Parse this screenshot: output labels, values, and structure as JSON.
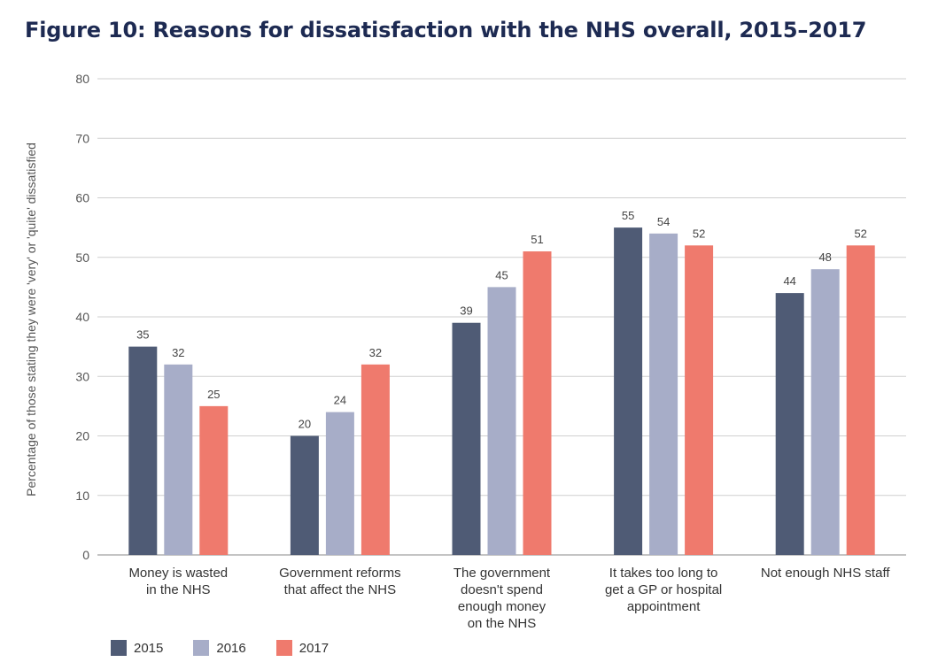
{
  "chart_data": {
    "type": "bar",
    "title": "Figure 10: Reasons for dissatisfaction with the NHS overall, 2015–2017",
    "ylabel": "Percentage of those stating they were 'very' or 'quite' dissatisfied",
    "xlabel": "",
    "ylim": [
      0,
      80
    ],
    "yticks": [
      0,
      10,
      20,
      30,
      40,
      50,
      60,
      70,
      80
    ],
    "grid": true,
    "legend_position": "bottom-left",
    "categories": [
      [
        "Money is wasted",
        "in the NHS"
      ],
      [
        "Government reforms",
        "that affect the NHS"
      ],
      [
        "The government",
        "doesn't spend",
        "enough money",
        "on the NHS"
      ],
      [
        "It takes too long to",
        "get a GP or hospital",
        "appointment"
      ],
      [
        "Not enough NHS staff"
      ]
    ],
    "series": [
      {
        "name": "2015",
        "color": "#4f5b75",
        "values": [
          35,
          20,
          39,
          55,
          44
        ]
      },
      {
        "name": "2016",
        "color": "#a7adc8",
        "values": [
          32,
          24,
          45,
          54,
          48
        ]
      },
      {
        "name": "2017",
        "color": "#ef7a6d",
        "values": [
          25,
          32,
          51,
          52,
          52
        ]
      }
    ]
  }
}
